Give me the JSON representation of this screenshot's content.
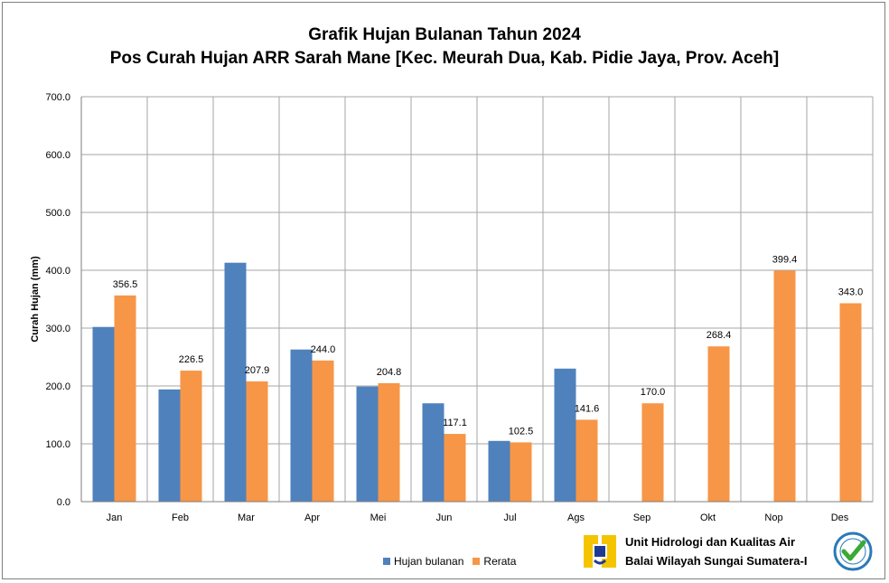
{
  "title_line1": "Grafik Hujan Bulanan Tahun 2024",
  "title_line2": "Pos Curah Hujan ARR Sarah Mane [Kec. Meurah Dua, Kab. Pidie Jaya, Prov. Aceh]",
  "footer": {
    "line1": "Unit Hidrologi dan Kualitas Air",
    "line2": "Balai Wilayah Sungai Sumatera-I"
  },
  "colors": {
    "hujan": "#4f81bd",
    "rerata": "#f79646",
    "grid": "#a6a6a6"
  },
  "chart_data": {
    "type": "bar",
    "title": "Grafik Hujan Bulanan Tahun 2024",
    "subtitle": "Pos Curah Hujan ARR Sarah Mane [Kec. Meurah Dua, Kab. Pidie Jaya, Prov. Aceh]",
    "xlabel": "",
    "ylabel": "Curah Hujan (mm)",
    "ylim": [
      0,
      700
    ],
    "yticks": [
      "0.0",
      "100.0",
      "200.0",
      "300.0",
      "400.0",
      "500.0",
      "600.0",
      "700.0"
    ],
    "grid": true,
    "legend_position": "bottom",
    "categories": [
      "Jan",
      "Feb",
      "Mar",
      "Apr",
      "Mei",
      "Jun",
      "Jul",
      "Ags",
      "Sep",
      "Okt",
      "Nop",
      "Des"
    ],
    "series": [
      {
        "name": "Hujan bulanan",
        "values": [
          302,
          194,
          413,
          263,
          199,
          170,
          105,
          230,
          null,
          null,
          null,
          null
        ],
        "labels": []
      },
      {
        "name": "Rerata",
        "values": [
          356.5,
          226.5,
          207.9,
          244.0,
          204.8,
          117.1,
          102.5,
          141.6,
          170.0,
          268.4,
          399.4,
          343.0
        ],
        "labels": [
          "356.5",
          "226.5",
          "207.9",
          "244.0",
          "204.8",
          "117.1",
          "102.5",
          "141.6",
          "170.0",
          "268.4",
          "399.4",
          "343.0"
        ]
      }
    ]
  }
}
